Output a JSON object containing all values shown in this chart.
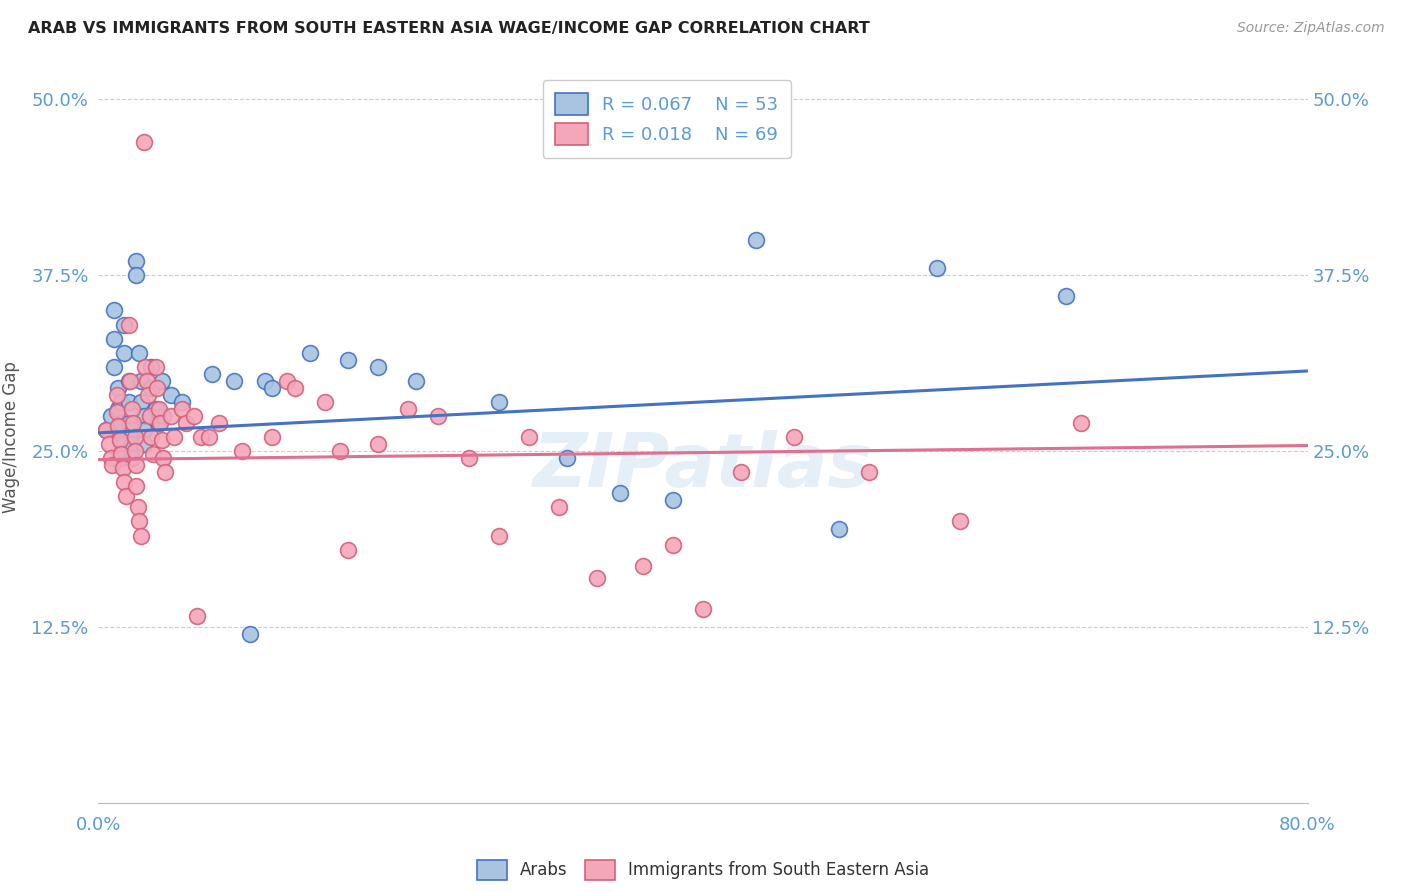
{
  "title": "ARAB VS IMMIGRANTS FROM SOUTH EASTERN ASIA WAGE/INCOME GAP CORRELATION CHART",
  "source": "Source: ZipAtlas.com",
  "ylabel": "Wage/Income Gap",
  "ytick_labels": [
    "",
    "12.5%",
    "25.0%",
    "37.5%",
    "50.0%"
  ],
  "ytick_values": [
    0.0,
    0.125,
    0.25,
    0.375,
    0.5
  ],
  "xlim": [
    0.0,
    0.8
  ],
  "ylim": [
    0.0,
    0.52
  ],
  "legend_label_blue": "Arabs",
  "legend_label_pink": "Immigrants from South Eastern Asia",
  "R_blue": 0.067,
  "N_blue": 53,
  "R_pink": 0.018,
  "N_pink": 69,
  "watermark": "ZIPatlas",
  "blue_color": "#a8c4e0",
  "pink_color": "#f4a7b9",
  "line_blue": "#4472c4",
  "line_pink": "#e07090",
  "axis_color": "#5b9bd5",
  "blue_scatter": [
    [
      0.005,
      0.265
    ],
    [
      0.008,
      0.275
    ],
    [
      0.01,
      0.35
    ],
    [
      0.01,
      0.33
    ],
    [
      0.01,
      0.31
    ],
    [
      0.013,
      0.295
    ],
    [
      0.013,
      0.28
    ],
    [
      0.013,
      0.265
    ],
    [
      0.015,
      0.285
    ],
    [
      0.015,
      0.27
    ],
    [
      0.015,
      0.255
    ],
    [
      0.015,
      0.245
    ],
    [
      0.017,
      0.34
    ],
    [
      0.017,
      0.32
    ],
    [
      0.02,
      0.3
    ],
    [
      0.02,
      0.285
    ],
    [
      0.02,
      0.27
    ],
    [
      0.022,
      0.265
    ],
    [
      0.022,
      0.255
    ],
    [
      0.022,
      0.245
    ],
    [
      0.025,
      0.385
    ],
    [
      0.025,
      0.375
    ],
    [
      0.027,
      0.32
    ],
    [
      0.028,
      0.3
    ],
    [
      0.028,
      0.285
    ],
    [
      0.03,
      0.275
    ],
    [
      0.03,
      0.265
    ],
    [
      0.03,
      0.255
    ],
    [
      0.035,
      0.31
    ],
    [
      0.035,
      0.295
    ],
    [
      0.038,
      0.28
    ],
    [
      0.04,
      0.27
    ],
    [
      0.042,
      0.3
    ],
    [
      0.043,
      0.275
    ],
    [
      0.048,
      0.29
    ],
    [
      0.055,
      0.285
    ],
    [
      0.075,
      0.305
    ],
    [
      0.09,
      0.3
    ],
    [
      0.11,
      0.3
    ],
    [
      0.115,
      0.295
    ],
    [
      0.14,
      0.32
    ],
    [
      0.165,
      0.315
    ],
    [
      0.185,
      0.31
    ],
    [
      0.21,
      0.3
    ],
    [
      0.265,
      0.285
    ],
    [
      0.31,
      0.245
    ],
    [
      0.345,
      0.22
    ],
    [
      0.38,
      0.215
    ],
    [
      0.435,
      0.4
    ],
    [
      0.49,
      0.195
    ],
    [
      0.555,
      0.38
    ],
    [
      0.64,
      0.36
    ],
    [
      0.1,
      0.12
    ]
  ],
  "pink_scatter": [
    [
      0.005,
      0.265
    ],
    [
      0.007,
      0.255
    ],
    [
      0.008,
      0.245
    ],
    [
      0.009,
      0.24
    ],
    [
      0.012,
      0.29
    ],
    [
      0.012,
      0.278
    ],
    [
      0.013,
      0.268
    ],
    [
      0.014,
      0.258
    ],
    [
      0.015,
      0.248
    ],
    [
      0.016,
      0.238
    ],
    [
      0.017,
      0.228
    ],
    [
      0.018,
      0.218
    ],
    [
      0.02,
      0.34
    ],
    [
      0.021,
      0.3
    ],
    [
      0.022,
      0.28
    ],
    [
      0.023,
      0.27
    ],
    [
      0.024,
      0.26
    ],
    [
      0.024,
      0.25
    ],
    [
      0.025,
      0.24
    ],
    [
      0.025,
      0.225
    ],
    [
      0.026,
      0.21
    ],
    [
      0.027,
      0.2
    ],
    [
      0.028,
      0.19
    ],
    [
      0.03,
      0.47
    ],
    [
      0.031,
      0.31
    ],
    [
      0.032,
      0.3
    ],
    [
      0.033,
      0.29
    ],
    [
      0.034,
      0.275
    ],
    [
      0.035,
      0.26
    ],
    [
      0.036,
      0.248
    ],
    [
      0.038,
      0.31
    ],
    [
      0.039,
      0.295
    ],
    [
      0.04,
      0.28
    ],
    [
      0.041,
      0.27
    ],
    [
      0.042,
      0.258
    ],
    [
      0.043,
      0.245
    ],
    [
      0.044,
      0.235
    ],
    [
      0.048,
      0.275
    ],
    [
      0.05,
      0.26
    ],
    [
      0.055,
      0.28
    ],
    [
      0.058,
      0.27
    ],
    [
      0.063,
      0.275
    ],
    [
      0.068,
      0.26
    ],
    [
      0.073,
      0.26
    ],
    [
      0.08,
      0.27
    ],
    [
      0.095,
      0.25
    ],
    [
      0.115,
      0.26
    ],
    [
      0.125,
      0.3
    ],
    [
      0.13,
      0.295
    ],
    [
      0.15,
      0.285
    ],
    [
      0.16,
      0.25
    ],
    [
      0.165,
      0.18
    ],
    [
      0.185,
      0.255
    ],
    [
      0.205,
      0.28
    ],
    [
      0.225,
      0.275
    ],
    [
      0.245,
      0.245
    ],
    [
      0.265,
      0.19
    ],
    [
      0.285,
      0.26
    ],
    [
      0.305,
      0.21
    ],
    [
      0.33,
      0.16
    ],
    [
      0.36,
      0.168
    ],
    [
      0.38,
      0.183
    ],
    [
      0.4,
      0.138
    ],
    [
      0.425,
      0.235
    ],
    [
      0.46,
      0.26
    ],
    [
      0.51,
      0.235
    ],
    [
      0.57,
      0.2
    ],
    [
      0.65,
      0.27
    ],
    [
      0.065,
      0.133
    ]
  ]
}
